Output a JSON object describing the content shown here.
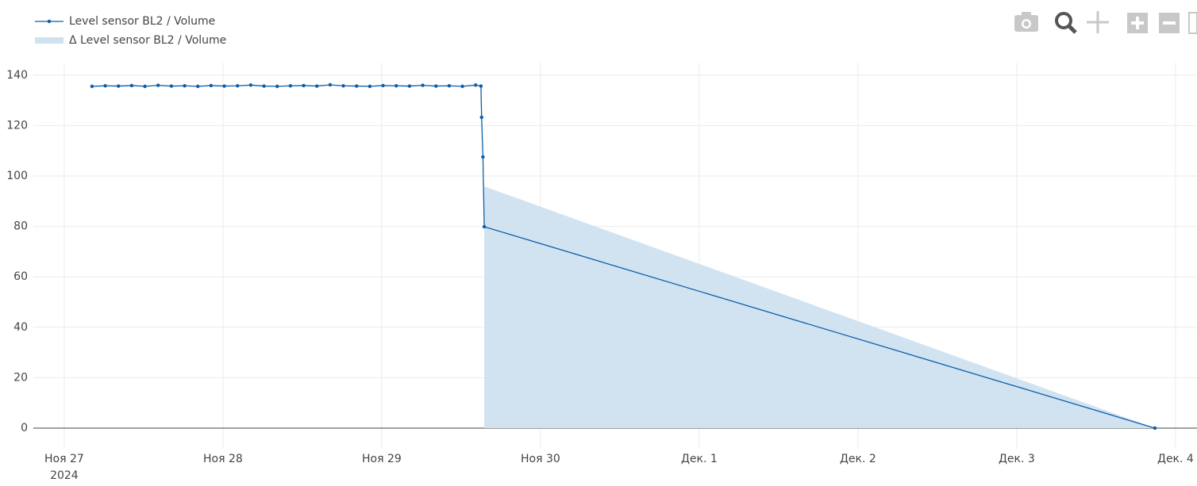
{
  "chart_data": {
    "type": "line",
    "series": [
      {
        "name": "Level sensor BL2 / Volume",
        "color": "#0d5ea8",
        "kind": "line",
        "x": [
          "2024-11-27T04:12",
          "2024-11-27T06:12",
          "2024-11-27T08:12",
          "2024-11-27T10:12",
          "2024-11-27T12:12",
          "2024-11-27T14:12",
          "2024-11-27T16:12",
          "2024-11-27T18:12",
          "2024-11-27T20:12",
          "2024-11-27T22:12",
          "2024-11-28T00:12",
          "2024-11-28T02:12",
          "2024-11-28T04:12",
          "2024-11-28T06:12",
          "2024-11-28T08:12",
          "2024-11-28T10:12",
          "2024-11-28T12:12",
          "2024-11-28T14:12",
          "2024-11-28T16:12",
          "2024-11-28T18:12",
          "2024-11-28T20:12",
          "2024-11-28T22:12",
          "2024-11-29T00:12",
          "2024-11-29T02:12",
          "2024-11-29T04:12",
          "2024-11-29T06:12",
          "2024-11-29T08:12",
          "2024-11-29T10:12",
          "2024-11-29T12:12",
          "2024-11-29T14:12",
          "2024-11-29T15:00",
          "2024-11-29T15:06",
          "2024-11-29T15:18",
          "2024-11-29T15:30",
          "2024-12-03T20:53"
        ],
        "values": [
          135.6,
          135.8,
          135.7,
          135.9,
          135.6,
          136.0,
          135.7,
          135.8,
          135.6,
          135.9,
          135.7,
          135.8,
          136.1,
          135.7,
          135.6,
          135.8,
          135.9,
          135.7,
          136.2,
          135.8,
          135.7,
          135.6,
          135.9,
          135.8,
          135.7,
          136.0,
          135.7,
          135.8,
          135.6,
          136.1,
          135.7,
          123.3,
          107.6,
          79.9,
          0
        ]
      },
      {
        "name": "Δ Level sensor BL2 / Volume",
        "color": "#cfe2f0",
        "kind": "area",
        "x": [
          "2024-11-29T15:30",
          "2024-12-03T20:53"
        ],
        "values": [
          95.9,
          0
        ]
      }
    ],
    "xlim": [
      "2024-11-26T19:20",
      "2024-12-04T03:15"
    ],
    "xticks": [
      {
        "value": "2024-11-27T00:00",
        "label": "Ноя 27\n2024"
      },
      {
        "value": "2024-11-28T00:00",
        "label": "Ноя 28"
      },
      {
        "value": "2024-11-29T00:00",
        "label": "Ноя 29"
      },
      {
        "value": "2024-11-30T00:00",
        "label": "Ноя 30"
      },
      {
        "value": "2024-12-01T00:00",
        "label": "Дек. 1"
      },
      {
        "value": "2024-12-02T00:00",
        "label": "Дек. 2"
      },
      {
        "value": "2024-12-03T00:00",
        "label": "Дек. 3"
      },
      {
        "value": "2024-12-04T00:00",
        "label": "Дек. 4"
      }
    ],
    "ylim": [
      -8,
      145
    ],
    "yticks": [
      0,
      20,
      40,
      60,
      80,
      100,
      120,
      140
    ],
    "grid": true
  }
}
